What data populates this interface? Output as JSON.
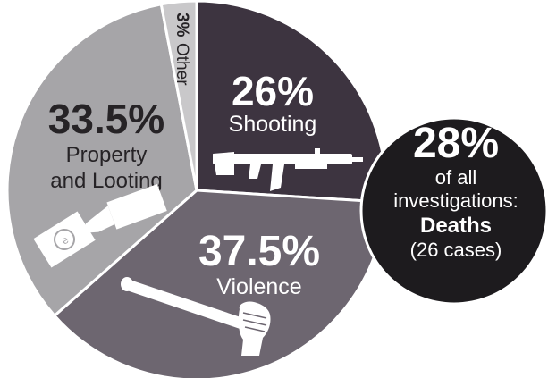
{
  "chart_data": {
    "type": "pie",
    "title": "",
    "slices": [
      {
        "key": "shooting",
        "value_text": "26%",
        "label": "Shooting",
        "value": 26,
        "color": "#3d3440"
      },
      {
        "key": "violence",
        "value_text": "37.5%",
        "label": "Violence",
        "value": 37.5,
        "color": "#6d6670"
      },
      {
        "key": "property",
        "value_text": "33.5%",
        "label_line1": "Property",
        "label_line2": "and Looting",
        "value": 33.5,
        "color": "#a6a5a8"
      },
      {
        "key": "other",
        "value_text": "3%",
        "label": "Other",
        "value": 3,
        "color": "#c9c8ca"
      }
    ],
    "callout": {
      "value_text": "28%",
      "line1": "of all",
      "line2": "investigations:",
      "line3": "Deaths",
      "line4": "(26 cases)",
      "color": "#1d1b1e"
    },
    "icons": [
      "rifle-icon",
      "money-hand-icon",
      "bat-fist-icon"
    ]
  }
}
